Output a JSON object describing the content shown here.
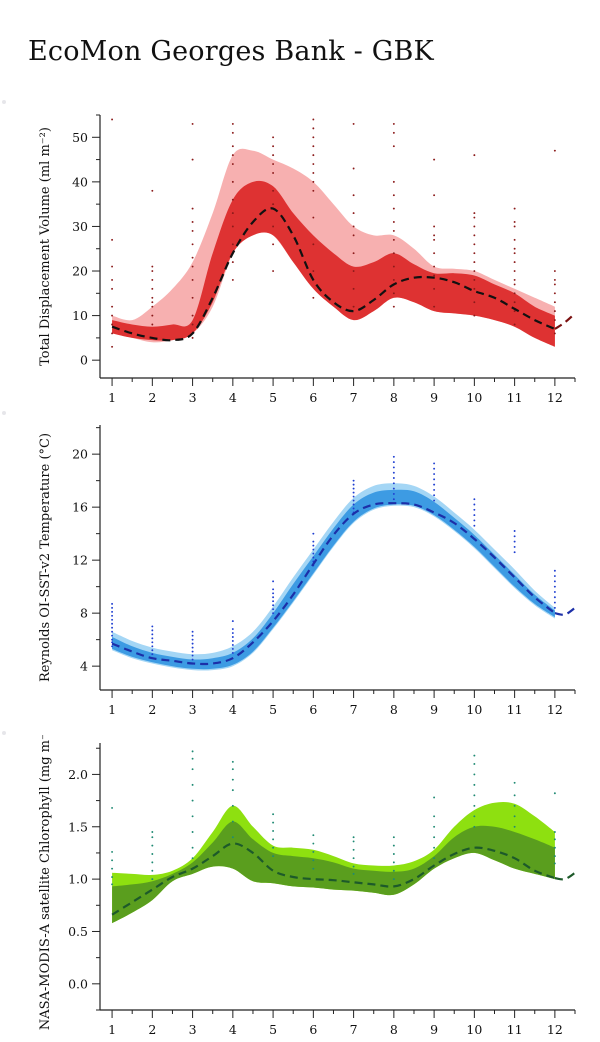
{
  "page": {
    "title": "EcoMon Georges Bank - GBK"
  },
  "chart_data": [
    {
      "type": "area",
      "ylabel": "Total Displacement Volume (ml m⁻²)",
      "ylim": [
        -4,
        55
      ],
      "yticks": [
        0,
        10,
        20,
        30,
        40,
        50
      ],
      "xlim": [
        0.7,
        12.5
      ],
      "xticks": [
        1,
        2,
        3,
        4,
        5,
        6,
        7,
        8,
        9,
        10,
        11,
        12
      ],
      "colors": {
        "outer": "#f7b0b0",
        "inner": "#de3232",
        "median": "#111111",
        "wrap": "#7a1010",
        "points": "#8b1a1a"
      },
      "x": [
        1,
        1.5,
        2,
        2.5,
        3,
        3.5,
        4,
        4.5,
        5,
        5.5,
        6,
        6.5,
        7,
        7.5,
        8,
        8.5,
        9,
        9.5,
        10,
        10.5,
        11,
        11.5,
        12
      ],
      "band_outer_low": [
        6,
        5,
        4,
        4.5,
        6,
        12,
        24,
        30,
        28,
        22,
        16,
        12,
        9,
        11,
        14,
        13,
        11,
        10.5,
        10,
        9,
        7.5,
        5,
        3
      ],
      "band_outer_high": [
        10,
        9,
        12,
        16,
        22,
        33,
        46,
        47,
        45,
        43,
        40,
        35,
        30,
        28,
        28,
        25,
        21,
        20.5,
        20,
        18,
        16,
        14,
        12
      ],
      "band_inner_low": [
        6,
        5,
        4.5,
        4.5,
        6,
        13,
        24,
        28,
        28,
        22,
        16,
        12,
        9,
        11,
        14,
        13,
        11,
        10.5,
        10,
        9,
        7.5,
        5,
        3
      ],
      "band_inner_high": [
        9,
        8,
        7.5,
        8,
        9,
        24,
        36,
        40,
        39,
        33,
        28,
        24,
        21,
        22,
        24,
        21.5,
        19.5,
        19.5,
        19,
        17,
        15,
        12,
        10
      ],
      "median": [
        7.5,
        6,
        5,
        4.5,
        6,
        14,
        24,
        31,
        34,
        28,
        18,
        13,
        11,
        13.5,
        17,
        18.5,
        18.5,
        17.5,
        15.5,
        14,
        11.5,
        9,
        7
      ],
      "median_wrap": [
        [
          12,
          7
        ],
        [
          12.25,
          8.5
        ],
        [
          12.5,
          10.5
        ]
      ],
      "obs_months": [
        1,
        2,
        3,
        4,
        5,
        6,
        7,
        8,
        9,
        10,
        11,
        12
      ],
      "obs": [
        [
          3,
          6,
          8,
          10,
          12,
          16,
          18,
          21,
          27,
          54
        ],
        [
          5,
          8,
          10,
          12,
          13,
          14,
          16,
          18,
          20,
          21,
          38
        ],
        [
          5,
          8,
          10,
          14,
          18,
          21,
          23,
          26,
          29,
          31,
          34,
          45,
          53
        ],
        [
          18,
          22,
          26,
          30,
          33,
          36,
          40,
          44,
          46,
          48,
          51,
          53
        ],
        [
          20,
          26,
          30,
          35,
          38,
          42,
          44,
          46,
          48,
          50
        ],
        [
          14,
          20,
          26,
          32,
          38,
          40,
          42,
          44,
          46,
          48,
          50,
          52,
          54
        ],
        [
          12,
          16,
          20,
          24,
          28,
          30,
          33,
          37,
          43,
          53
        ],
        [
          12,
          15,
          18,
          21,
          24,
          27,
          29,
          31,
          34,
          37,
          40,
          48,
          51,
          53
        ],
        [
          12,
          16,
          19,
          21,
          24,
          27,
          28,
          30,
          37,
          45
        ],
        [
          10,
          13,
          16,
          18,
          20,
          22,
          24,
          26,
          28,
          30,
          32,
          33,
          46
        ],
        [
          8,
          11,
          13,
          15,
          17,
          18,
          20,
          22,
          24,
          25,
          27,
          30,
          31,
          34
        ],
        [
          6,
          9,
          11,
          13,
          15,
          17,
          18,
          20,
          47
        ]
      ]
    },
    {
      "type": "area",
      "ylabel": "Reynolds OI-SST-v2 Temperature (°C)",
      "ylim": [
        2.2,
        22.2
      ],
      "yticks": [
        4,
        8,
        12,
        16,
        20
      ],
      "xlim": [
        0.7,
        12.5
      ],
      "xticks": [
        1,
        2,
        3,
        4,
        5,
        6,
        7,
        8,
        9,
        10,
        11,
        12
      ],
      "colors": {
        "outer": "#a4d6f5",
        "inner": "#3d9be3",
        "median": "#1c2fa8",
        "wrap": "#1c2fa8",
        "points": "#1f3fd1"
      },
      "x": [
        1,
        1.5,
        2,
        2.5,
        3,
        3.5,
        4,
        4.5,
        5,
        5.5,
        6,
        6.5,
        7,
        7.5,
        8,
        8.5,
        9,
        9.5,
        10,
        10.5,
        11,
        11.5,
        12
      ],
      "band_outer_low": [
        5.2,
        4.6,
        4.2,
        3.9,
        3.7,
        3.7,
        4.0,
        5.0,
        6.8,
        8.8,
        10.9,
        13.0,
        14.8,
        15.8,
        16.1,
        16.0,
        15.3,
        14.2,
        12.9,
        11.4,
        9.9,
        8.6,
        7.6
      ],
      "band_outer_high": [
        6.6,
        5.9,
        5.4,
        5.1,
        4.9,
        5.0,
        5.5,
        6.6,
        8.5,
        10.7,
        12.8,
        14.9,
        16.7,
        17.6,
        17.8,
        17.6,
        16.8,
        15.6,
        14.3,
        12.8,
        11.3,
        9.7,
        8.4
      ],
      "band_inner_low": [
        5.3,
        4.7,
        4.3,
        4.0,
        3.8,
        3.8,
        4.1,
        5.1,
        6.9,
        8.9,
        11.0,
        13.1,
        14.9,
        15.9,
        16.2,
        16.1,
        15.4,
        14.3,
        13.0,
        11.5,
        10.0,
        8.7,
        7.7
      ],
      "band_inner_high": [
        6.2,
        5.5,
        5.0,
        4.7,
        4.5,
        4.6,
        5.0,
        6.1,
        8.0,
        10.2,
        12.3,
        14.4,
        16.2,
        17.1,
        17.3,
        17.2,
        16.4,
        15.2,
        13.9,
        12.4,
        10.9,
        9.4,
        8.2
      ],
      "median": [
        5.7,
        5.1,
        4.6,
        4.4,
        4.2,
        4.2,
        4.6,
        5.8,
        7.4,
        9.4,
        11.7,
        13.9,
        15.5,
        16.2,
        16.3,
        16.2,
        15.6,
        14.8,
        13.6,
        12.2,
        10.7,
        9.2,
        8.0
      ],
      "median_wrap": [
        [
          12,
          8.0
        ],
        [
          12.25,
          7.9
        ],
        [
          12.5,
          8.4
        ]
      ],
      "obs_months": [
        1,
        2,
        3,
        4,
        5,
        6,
        7,
        8,
        9,
        10,
        11,
        12
      ],
      "obs": [
        [
          5.5,
          5.8,
          6.0,
          6.3,
          6.6,
          6.9,
          7.2,
          7.5,
          7.8,
          8.1,
          8.4,
          8.7
        ],
        [
          4.9,
          5.2,
          5.5,
          5.8,
          6.1,
          6.4,
          6.7,
          7.0
        ],
        [
          4.5,
          4.8,
          5.1,
          5.4,
          5.7,
          6.0,
          6.3,
          6.6
        ],
        [
          5.0,
          5.3,
          5.6,
          5.9,
          6.2,
          6.5,
          6.8,
          7.4
        ],
        [
          8.0,
          8.3,
          8.6,
          8.9,
          9.2,
          9.5,
          9.8,
          10.4
        ],
        [
          11.6,
          11.9,
          12.2,
          12.5,
          12.8,
          13.1,
          13.4,
          14.0
        ],
        [
          15.6,
          15.9,
          16.2,
          16.5,
          16.8,
          17.1,
          17.4,
          17.7,
          18.0
        ],
        [
          16.6,
          17.0,
          17.4,
          17.8,
          18.2,
          18.6,
          19.0,
          19.4,
          19.8
        ],
        [
          16.5,
          16.9,
          17.3,
          17.7,
          18.1,
          18.5,
          18.9,
          19.3
        ],
        [
          14.6,
          15.0,
          15.4,
          15.8,
          16.2,
          16.6
        ],
        [
          12.6,
          13.0,
          13.4,
          13.8,
          14.2
        ],
        [
          8.4,
          8.8,
          9.2,
          9.6,
          10.0,
          10.4,
          10.8,
          11.2
        ]
      ]
    },
    {
      "type": "area",
      "ylabel": "NASA-MODIS-A satellite Chlorophyll (mg m⁻³)",
      "ylim": [
        -0.25,
        2.3
      ],
      "yticks": [
        0.0,
        0.5,
        1.0,
        1.5,
        2.0
      ],
      "ytick_labels": [
        "0.0",
        "0.5",
        "1.0",
        "1.5",
        "2.0"
      ],
      "xlim": [
        0.7,
        12.5
      ],
      "xticks": [
        1,
        2,
        3,
        4,
        5,
        6,
        7,
        8,
        9,
        10,
        11,
        12
      ],
      "colors": {
        "outer": "#8ee010",
        "inner": "#5a9e1e",
        "median": "#1d5a2a",
        "wrap": "#1d5a2a",
        "points": "#1f8a73"
      },
      "x": [
        1,
        1.5,
        2,
        2.5,
        3,
        3.5,
        4,
        4.5,
        5,
        5.5,
        6,
        6.5,
        7,
        7.5,
        8,
        8.5,
        9,
        9.5,
        10,
        10.5,
        11,
        11.5,
        12
      ],
      "band_outer_low": [
        0.58,
        0.68,
        0.8,
        0.98,
        1.05,
        1.12,
        1.1,
        0.98,
        0.96,
        0.93,
        0.92,
        0.9,
        0.89,
        0.87,
        0.85,
        0.95,
        1.1,
        1.2,
        1.25,
        1.18,
        1.1,
        1.05,
        1.0
      ],
      "band_outer_high": [
        1.06,
        1.05,
        1.04,
        1.08,
        1.2,
        1.45,
        1.7,
        1.5,
        1.32,
        1.3,
        1.28,
        1.22,
        1.15,
        1.13,
        1.13,
        1.17,
        1.28,
        1.5,
        1.66,
        1.73,
        1.72,
        1.6,
        1.45
      ],
      "band_inner_low": [
        0.58,
        0.68,
        0.8,
        0.98,
        1.05,
        1.12,
        1.1,
        0.98,
        0.96,
        0.93,
        0.92,
        0.9,
        0.89,
        0.87,
        0.85,
        0.95,
        1.1,
        1.2,
        1.25,
        1.18,
        1.1,
        1.05,
        1.0
      ],
      "band_inner_high": [
        0.93,
        0.95,
        0.98,
        1.05,
        1.16,
        1.35,
        1.55,
        1.38,
        1.25,
        1.22,
        1.2,
        1.16,
        1.1,
        1.08,
        1.07,
        1.1,
        1.22,
        1.4,
        1.5,
        1.5,
        1.45,
        1.38,
        1.3
      ],
      "median": [
        0.66,
        0.78,
        0.9,
        1.02,
        1.1,
        1.22,
        1.34,
        1.25,
        1.08,
        1.02,
        1.0,
        0.99,
        0.97,
        0.95,
        0.93,
        1.0,
        1.13,
        1.24,
        1.3,
        1.27,
        1.2,
        1.08,
        1.01
      ],
      "median_wrap": [
        [
          12,
          1.01
        ],
        [
          12.25,
          1.0
        ],
        [
          12.5,
          1.06
        ]
      ],
      "obs_months": [
        1,
        2,
        3,
        4,
        5,
        6,
        7,
        8,
        9,
        10,
        11,
        12
      ],
      "obs": [
        [
          0.95,
          1.02,
          1.1,
          1.18,
          1.26,
          1.68
        ],
        [
          1.0,
          1.08,
          1.16,
          1.24,
          1.32,
          1.4,
          1.45
        ],
        [
          1.2,
          1.3,
          1.45,
          1.6,
          1.75,
          1.9,
          2.05,
          2.15,
          2.22
        ],
        [
          1.4,
          1.55,
          1.7,
          1.85,
          1.95,
          2.05,
          2.12
        ],
        [
          1.22,
          1.3,
          1.38,
          1.46,
          1.54,
          1.62
        ],
        [
          1.1,
          1.18,
          1.26,
          1.34,
          1.42
        ],
        [
          1.05,
          1.12,
          1.2,
          1.28,
          1.36,
          1.4
        ],
        [
          1.0,
          1.08,
          1.16,
          1.24,
          1.32,
          1.4
        ],
        [
          1.2,
          1.3,
          1.4,
          1.5,
          1.6,
          1.78
        ],
        [
          1.5,
          1.6,
          1.7,
          1.8,
          1.9,
          2.0,
          2.1,
          2.18
        ],
        [
          1.5,
          1.6,
          1.7,
          1.8,
          1.92
        ],
        [
          1.15,
          1.22,
          1.3,
          1.38,
          1.45,
          1.82
        ]
      ]
    }
  ]
}
